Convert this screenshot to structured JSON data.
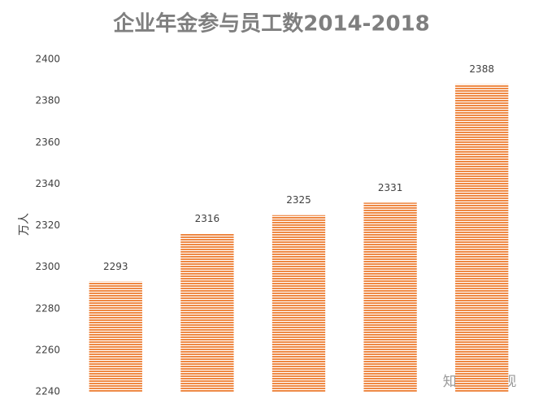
{
  "chart_data": {
    "type": "bar",
    "title": "企业年金参与员工数2014-2018",
    "y_label": "万人",
    "categories": [
      null,
      null,
      null,
      null,
      null
    ],
    "values": [
      2293,
      2316,
      2325,
      2331,
      2388
    ],
    "color": "#ed7d31",
    "ylim": [
      2240,
      2400
    ],
    "yticks": [
      2240,
      2260,
      2280,
      2300,
      2320,
      2340,
      2360,
      2380,
      2400
    ],
    "grid": false,
    "watermark": "知乎 @保观"
  }
}
